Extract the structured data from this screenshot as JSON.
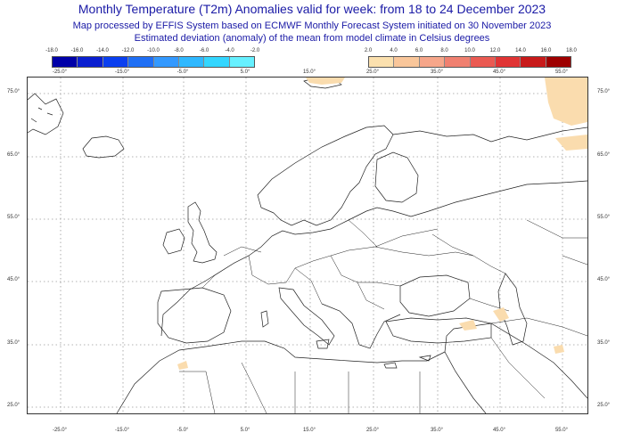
{
  "header": {
    "title": "Monthly Temperature (T2m) Anomalies valid for week: from 18 to 24 December 2023",
    "subtitle1": "Map processed by EFFIS System based on ECMWF Monthly Forecast System initiated on 30 November 2023",
    "subtitle2": "Estimated deviation (anomaly) of the mean from model climate in Celsius degrees"
  },
  "legend": {
    "cold": {
      "ticks": [
        "-18.0",
        "-16.0",
        "-14.0",
        "-12.0",
        "-10.0",
        "-8.0",
        "-6.0",
        "-4.0",
        "-2.0"
      ],
      "colors": [
        "#0000a8",
        "#0a1fd0",
        "#0a3ff0",
        "#1f6ff5",
        "#3399ff",
        "#2fb8ff",
        "#33d6ff",
        "#66f0ff"
      ]
    },
    "warm": {
      "ticks": [
        "2.0",
        "4.0",
        "6.0",
        "8.0",
        "10.0",
        "12.0",
        "14.0",
        "16.0",
        "18.0"
      ],
      "colors": [
        "#fbe0ae",
        "#f9c69a",
        "#f6a68a",
        "#f08070",
        "#ea5a52",
        "#e03434",
        "#c81a1a",
        "#9e0000"
      ]
    }
  },
  "map": {
    "lon_labels": [
      "-25.0°",
      "-15.0°",
      "-5.0°",
      "5.0°",
      "15.0°",
      "25.0°",
      "35.0°",
      "45.0°",
      "55.0°"
    ],
    "lat_labels": [
      "75.0°",
      "65.0°",
      "55.0°",
      "45.0°",
      "35.0°",
      "25.0°"
    ],
    "anomaly_color": "#fadcae"
  }
}
